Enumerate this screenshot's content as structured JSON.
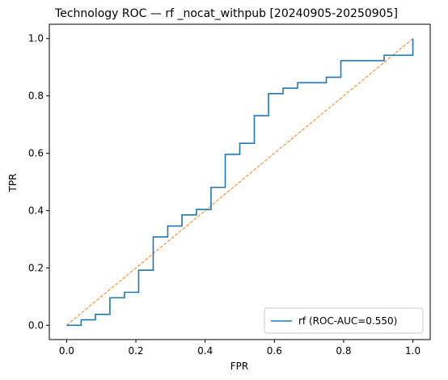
{
  "chart_data": {
    "type": "line",
    "title": "Technology ROC — rf _nocat_withpub [20240905-20250905]",
    "xlabel": "FPR",
    "ylabel": "TPR",
    "xlim": [
      -0.05,
      1.05
    ],
    "ylim": [
      -0.05,
      1.05
    ],
    "xticks": [
      0.0,
      0.2,
      0.4,
      0.6,
      0.8,
      1.0
    ],
    "yticks": [
      0.0,
      0.2,
      0.4,
      0.6,
      0.8,
      1.0
    ],
    "xtick_labels": [
      "0.0",
      "0.2",
      "0.4",
      "0.6",
      "0.8",
      "1.0"
    ],
    "ytick_labels": [
      "0.0",
      "0.2",
      "0.4",
      "0.6",
      "0.8",
      "1.0"
    ],
    "grid": false,
    "legend_position": "bottom-right",
    "series": [
      {
        "name": "rf (ROC-AUC=0.550)",
        "color": "#1f77b4",
        "style": "solid",
        "x": [
          0.0,
          0.0,
          0.042,
          0.042,
          0.083,
          0.083,
          0.125,
          0.125,
          0.167,
          0.167,
          0.208,
          0.208,
          0.25,
          0.25,
          0.292,
          0.292,
          0.333,
          0.333,
          0.375,
          0.375,
          0.417,
          0.417,
          0.458,
          0.458,
          0.5,
          0.5,
          0.542,
          0.542,
          0.583,
          0.583,
          0.625,
          0.625,
          0.667,
          0.667,
          0.75,
          0.75,
          0.792,
          0.792,
          0.917,
          0.917,
          1.0,
          1.0
        ],
        "y": [
          0.0,
          0.0,
          0.0,
          0.019,
          0.019,
          0.038,
          0.038,
          0.096,
          0.096,
          0.115,
          0.115,
          0.192,
          0.192,
          0.308,
          0.308,
          0.346,
          0.346,
          0.385,
          0.385,
          0.404,
          0.404,
          0.481,
          0.481,
          0.596,
          0.596,
          0.635,
          0.635,
          0.731,
          0.731,
          0.808,
          0.808,
          0.827,
          0.827,
          0.846,
          0.846,
          0.865,
          0.865,
          0.923,
          0.923,
          0.942,
          0.942,
          1.0
        ]
      },
      {
        "name": "",
        "color": "#ff7f0e",
        "style": "dashed",
        "x": [
          0.0,
          1.0
        ],
        "y": [
          0.0,
          1.0
        ]
      }
    ]
  }
}
